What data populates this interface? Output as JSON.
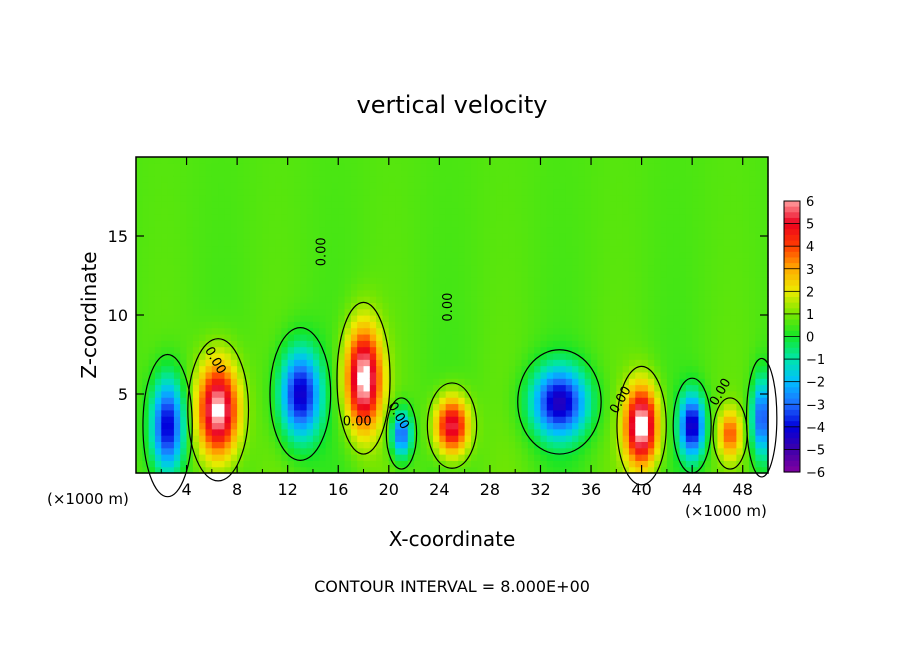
{
  "chart_data": {
    "type": "heatmap",
    "title": "vertical velocity",
    "xlabel": "X-coordinate",
    "ylabel": "Z-coordinate",
    "x_unit_left": "(×1000 m)",
    "x_unit_right": "(×1000 m)",
    "footer": "CONTOUR INTERVAL = 8.000E+00",
    "xlim": [
      0,
      50
    ],
    "ylim": [
      0,
      20
    ],
    "xticks": [
      4,
      8,
      12,
      16,
      20,
      24,
      28,
      32,
      36,
      40,
      44,
      48
    ],
    "yticks": [
      5,
      10,
      15
    ],
    "colorbar": {
      "min": -6,
      "max": 6,
      "ticks": [
        6,
        5,
        4,
        3,
        2,
        1,
        0,
        -1,
        -2,
        -3,
        -4,
        -5,
        -6
      ],
      "tick_labels": [
        "6",
        "5",
        "4",
        "3",
        "2",
        "1",
        "0",
        "−1",
        "−2",
        "−3",
        "−4",
        "−5",
        "−6"
      ]
    },
    "contour_labels": [
      "0.00",
      "0.00",
      "0.00",
      "0.00",
      "0.00",
      "0.00",
      "0.00"
    ],
    "features": [
      {
        "x": 2.5,
        "z": 3.0,
        "w": -5,
        "sx": 1.3,
        "sz": 3.0
      },
      {
        "x": 6.5,
        "z": 4.0,
        "w": 6,
        "sx": 1.6,
        "sz": 3.0
      },
      {
        "x": 13.0,
        "z": 5.0,
        "w": -5,
        "sx": 1.6,
        "sz": 2.8
      },
      {
        "x": 18.0,
        "z": 6.0,
        "w": 6,
        "sx": 1.4,
        "sz": 3.2
      },
      {
        "x": 21.0,
        "z": 2.5,
        "w": -4,
        "sx": 0.8,
        "sz": 1.5
      },
      {
        "x": 25.0,
        "z": 3.0,
        "w": 5,
        "sx": 1.3,
        "sz": 1.8
      },
      {
        "x": 33.5,
        "z": 4.5,
        "w": -5,
        "sx": 2.2,
        "sz": 2.2
      },
      {
        "x": 40.0,
        "z": 3.0,
        "w": 6,
        "sx": 1.3,
        "sz": 2.5
      },
      {
        "x": 44.0,
        "z": 3.0,
        "w": -5,
        "sx": 1.0,
        "sz": 2.0
      },
      {
        "x": 47.0,
        "z": 2.5,
        "w": 3,
        "sx": 0.9,
        "sz": 1.5
      },
      {
        "x": 49.5,
        "z": 3.5,
        "w": -4,
        "sx": 0.8,
        "sz": 2.5
      }
    ]
  }
}
